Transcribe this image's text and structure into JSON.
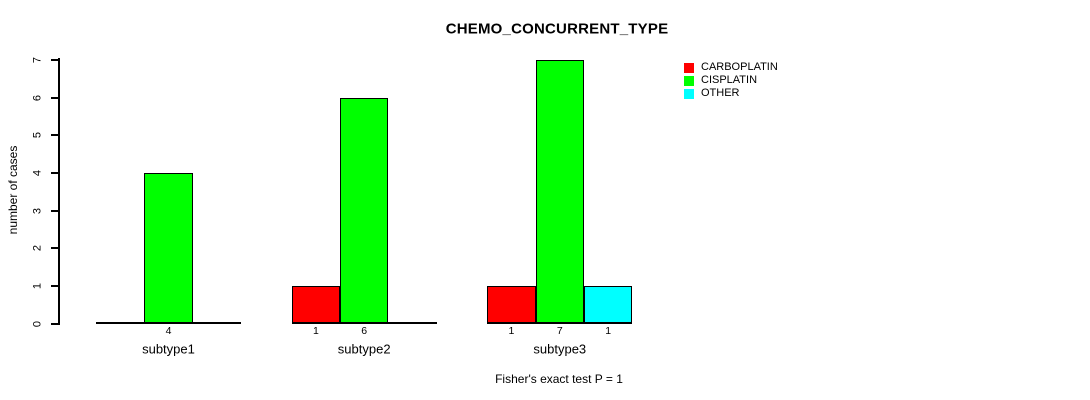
{
  "chart_data": {
    "type": "bar",
    "title": "CHEMO_CONCURRENT_TYPE",
    "ylabel": "number of cases",
    "xlabel": "",
    "categories": [
      "subtype1",
      "subtype2",
      "subtype3"
    ],
    "series": [
      {
        "name": "CARBOPLATIN",
        "color": "#FF0000",
        "values": [
          0,
          1,
          1
        ]
      },
      {
        "name": "CISPLATIN",
        "color": "#00FF00",
        "values": [
          4,
          6,
          7
        ]
      },
      {
        "name": "OTHER",
        "color": "#00FFFF",
        "values": [
          0,
          0,
          1
        ]
      }
    ],
    "bar_value_labels": [
      [
        "",
        "4",
        ""
      ],
      [
        "1",
        "6",
        ""
      ],
      [
        "1",
        "7",
        "1"
      ]
    ],
    "ylim": [
      0,
      7
    ],
    "yticks": [
      0,
      1,
      2,
      3,
      4,
      5,
      6,
      7
    ],
    "grid": false,
    "legend_position": "right",
    "annotation": "Fisher's exact test P = 1"
  },
  "colors": {
    "background": "#FFFFFF",
    "axis": "#000000",
    "text": "#000000"
  }
}
